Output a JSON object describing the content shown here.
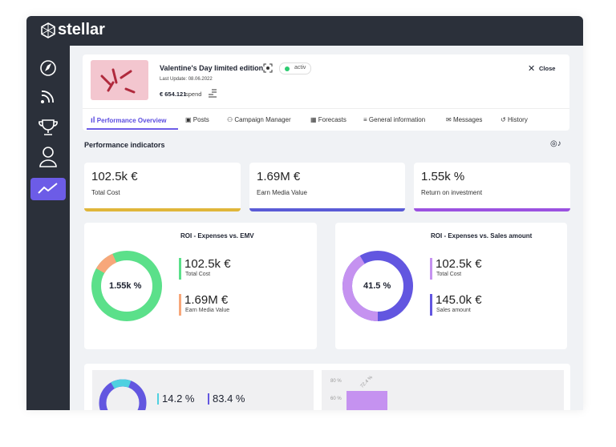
{
  "app": {
    "brand": "stellar"
  },
  "campaign": {
    "title": "Valentine's Day limited edition",
    "status": "activ",
    "last_update": "Last Update: 08.06.2022",
    "spend": "€ 654.121",
    "spend_label": "spend",
    "close": "Close"
  },
  "tabs": [
    "Performance Overview",
    "Posts",
    "Campaign Manager",
    "Forecasts",
    "General information",
    "Messages",
    "History"
  ],
  "section": {
    "title": "Performance indicators"
  },
  "kpis": [
    {
      "value": "102.5k €",
      "label": "Total Cost"
    },
    {
      "value": "1.69M €",
      "label": "Earn Media Value"
    },
    {
      "value": "1.55k %",
      "label": "Return on investment"
    }
  ],
  "roi_cards": [
    {
      "title": "ROI - Expenses vs. EMV",
      "center": "1.55k %",
      "legend": [
        {
          "value": "102.5k €",
          "label": "Total Cost"
        },
        {
          "value": "1.69M €",
          "label": "Earn Media Value"
        }
      ]
    },
    {
      "title": "ROI - Expenses vs. Sales amount",
      "center": "41.5 %",
      "legend": [
        {
          "value": "102.5k €",
          "label": "Total Cost"
        },
        {
          "value": "145.0k €",
          "label": "Sales amount"
        }
      ]
    }
  ],
  "bottom": {
    "values": [
      "14.2 %",
      "83.4 %"
    ],
    "yticks": [
      "80 %",
      "60 %"
    ],
    "bar_label": "72.4 %"
  }
}
